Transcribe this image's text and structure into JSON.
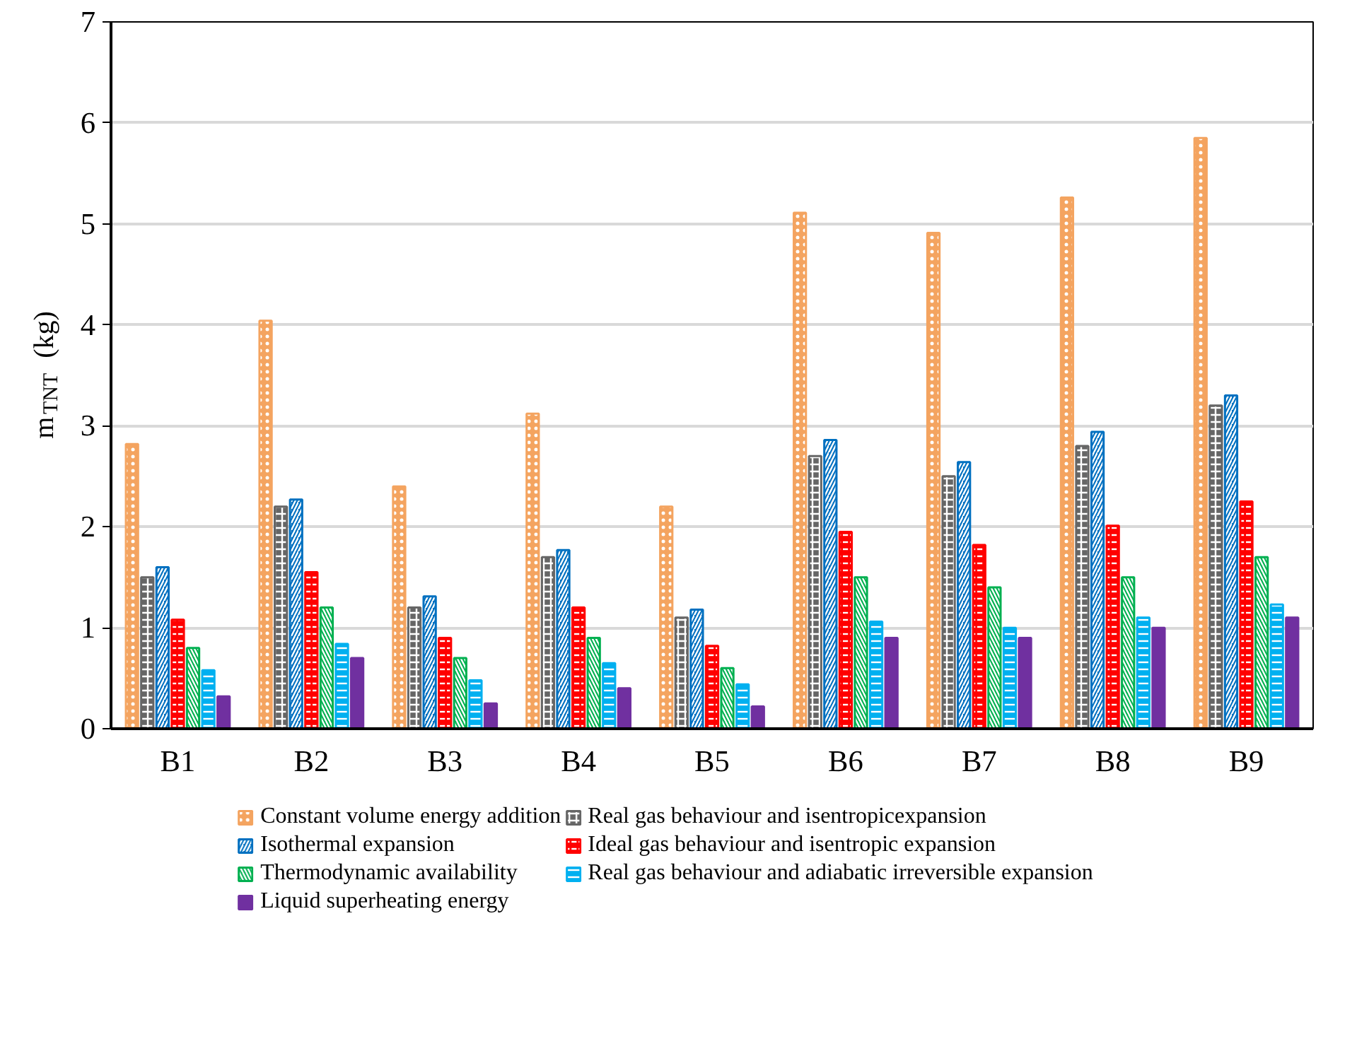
{
  "chart_data": {
    "type": "bar",
    "ylabel": "m$_{TNT}$ (kg)",
    "categories": [
      "B1",
      "B2",
      "B3",
      "B4",
      "B5",
      "B6",
      "B7",
      "B8",
      "B9"
    ],
    "series": [
      {
        "name": "Constant volume energy addition",
        "color": "#f4a460",
        "values": [
          2.82,
          4.04,
          2.4,
          3.12,
          2.2,
          5.11,
          4.91,
          5.26,
          5.85
        ]
      },
      {
        "name": "Real gas behaviour and isentropicexpansion",
        "color": "#666666",
        "values": [
          1.5,
          2.2,
          1.2,
          1.7,
          1.1,
          2.7,
          2.5,
          2.8,
          3.2
        ]
      },
      {
        "name": "Isothermal expansion",
        "color": "#0070c0",
        "values": [
          1.6,
          2.27,
          1.31,
          1.77,
          1.18,
          2.86,
          2.64,
          2.94,
          3.3
        ]
      },
      {
        "name": "Ideal gas behaviour and isentropic expansion",
        "color": "#ff0000",
        "values": [
          1.08,
          1.55,
          0.9,
          1.2,
          0.82,
          1.95,
          1.82,
          2.01,
          2.25
        ]
      },
      {
        "name": "Thermodynamic availability",
        "color": "#00b050",
        "values": [
          0.8,
          1.2,
          0.7,
          0.9,
          0.6,
          1.5,
          1.4,
          1.5,
          1.7
        ]
      },
      {
        "name": "Real gas behaviour and adiabatic irreversible expansion",
        "color": "#00b0f0",
        "values": [
          0.58,
          0.84,
          0.48,
          0.65,
          0.44,
          1.06,
          1.0,
          1.1,
          1.23
        ]
      },
      {
        "name": "Liquid superheating energy",
        "color": "#7030a0",
        "values": [
          0.32,
          0.7,
          0.25,
          0.4,
          0.22,
          0.9,
          0.9,
          1.0,
          1.1
        ]
      }
    ],
    "ylim": [
      0,
      7
    ],
    "yticks": [
      0,
      1,
      2,
      3,
      4,
      5,
      6,
      7
    ],
    "grid": "y",
    "legend": "bottom"
  }
}
